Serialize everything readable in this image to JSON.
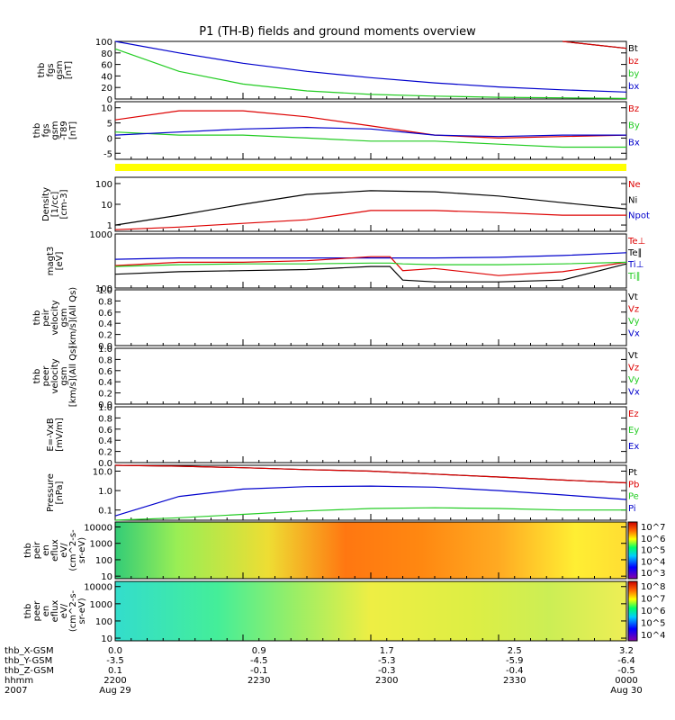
{
  "title": "P1 (TH-B) fields and ground moments overview",
  "colors": {
    "black": "#000000",
    "red": "#dd0000",
    "green": "#22cc22",
    "blue": "#0000cc",
    "yellow": "#ffff00"
  },
  "chart_data": [
    {
      "type": "line",
      "id": "fgs",
      "ylabel": [
        "thb",
        "fgs",
        "gsm",
        "[nT]"
      ],
      "ylim": [
        0,
        100
      ],
      "yticks": [
        "0",
        "20",
        "40",
        "60",
        "80",
        "100"
      ],
      "legend": [
        {
          "name": "Bt",
          "color": "black"
        },
        {
          "name": "bz",
          "color": "red"
        },
        {
          "name": "by",
          "color": "green"
        },
        {
          "name": "bx",
          "color": "blue"
        }
      ],
      "x": [
        0,
        0.4,
        0.8,
        1.2,
        1.6,
        2.0,
        2.4,
        2.8,
        3.2
      ],
      "series": [
        {
          "name": "Bt",
          "values": [
            null,
            null,
            null,
            null,
            null,
            null,
            null,
            100,
            88
          ]
        },
        {
          "name": "bz",
          "values": [
            null,
            null,
            null,
            null,
            null,
            null,
            null,
            100,
            88
          ]
        },
        {
          "name": "by",
          "values": [
            87,
            48,
            26,
            14,
            8,
            5,
            3,
            2,
            1
          ]
        },
        {
          "name": "bx",
          "values": [
            100,
            80,
            62,
            48,
            37,
            28,
            21,
            16,
            12
          ]
        }
      ]
    },
    {
      "type": "line",
      "id": "t89",
      "ylabel": [
        "thb",
        "fgs",
        "gsm",
        "-T89",
        "[nT]"
      ],
      "ylim": [
        -7,
        12
      ],
      "yticks": [
        "-5",
        "0",
        "5",
        "10"
      ],
      "legend": [
        {
          "name": "Bz",
          "color": "red"
        },
        {
          "name": "By",
          "color": "green"
        },
        {
          "name": "Bx",
          "color": "blue"
        }
      ],
      "x": [
        0,
        0.4,
        0.8,
        1.2,
        1.6,
        2.0,
        2.4,
        2.8,
        3.2
      ],
      "series": [
        {
          "name": "Bz",
          "values": [
            6,
            9,
            9,
            7,
            4,
            1,
            0,
            0.5,
            1
          ]
        },
        {
          "name": "By",
          "values": [
            2,
            1,
            1,
            0,
            -1,
            -1,
            -2,
            -3,
            -3
          ]
        },
        {
          "name": "Bx",
          "values": [
            1,
            2,
            3,
            3.5,
            3,
            1,
            0.5,
            1,
            1
          ]
        }
      ]
    },
    {
      "type": "line",
      "id": "density",
      "ylabel": [
        "Density",
        "[1/cc]",
        "[cm-3]"
      ],
      "scale": "log",
      "ylim": [
        0.5,
        200
      ],
      "yticks": [
        "1",
        "10",
        "100"
      ],
      "legend": [
        {
          "name": "Ne",
          "color": "red"
        },
        {
          "name": "Ni",
          "color": "black"
        },
        {
          "name": "Npot",
          "color": "blue"
        }
      ],
      "x": [
        0,
        0.4,
        0.8,
        1.2,
        1.6,
        2.0,
        2.4,
        2.8,
        3.2
      ],
      "series": [
        {
          "name": "Ni",
          "values": [
            1,
            3,
            10,
            30,
            45,
            40,
            25,
            12,
            6
          ]
        },
        {
          "name": "Ne",
          "values": [
            0.6,
            0.8,
            1.2,
            1.8,
            5,
            5,
            4,
            3,
            3
          ]
        }
      ]
    },
    {
      "type": "line",
      "id": "temp",
      "ylabel": [
        "magt3",
        "[eV]"
      ],
      "scale": "log",
      "ylim": [
        100,
        1000
      ],
      "yticks": [
        "100",
        "1000"
      ],
      "legend": [
        {
          "name": "Te⊥",
          "color": "red"
        },
        {
          "name": "Te∥",
          "color": "black"
        },
        {
          "name": "Ti⊥",
          "color": "blue"
        },
        {
          "name": "Ti∥",
          "color": "green"
        }
      ],
      "x": [
        0,
        0.4,
        0.8,
        1.2,
        1.6,
        1.72,
        1.8,
        2.0,
        2.4,
        2.8,
        3.2
      ],
      "series": [
        {
          "name": "Ti⊥",
          "values": [
            340,
            360,
            360,
            360,
            360,
            360,
            360,
            360,
            370,
            400,
            450
          ]
        },
        {
          "name": "Te⊥",
          "values": [
            260,
            300,
            300,
            320,
            380,
            380,
            210,
            230,
            170,
            200,
            300
          ]
        },
        {
          "name": "Ti∥",
          "values": [
            250,
            270,
            280,
            280,
            290,
            290,
            280,
            270,
            270,
            280,
            300
          ]
        },
        {
          "name": "Te∥",
          "values": [
            180,
            200,
            210,
            220,
            250,
            250,
            140,
            130,
            130,
            140,
            280
          ]
        }
      ]
    },
    {
      "type": "line",
      "id": "peir_vel",
      "ylabel": [
        "thb",
        "peir",
        "velocity",
        "gsm",
        "[km/s](All Qs)"
      ],
      "ylim": [
        0,
        1
      ],
      "yticks": [
        "0.0",
        "0.2",
        "0.4",
        "0.6",
        "0.8",
        "1.0"
      ],
      "legend": [
        {
          "name": "Vt",
          "color": "black"
        },
        {
          "name": "Vz",
          "color": "red"
        },
        {
          "name": "Vy",
          "color": "green"
        },
        {
          "name": "Vx",
          "color": "blue"
        }
      ],
      "series": []
    },
    {
      "type": "line",
      "id": "peer_vel",
      "ylabel": [
        "thb",
        "peer",
        "velocity",
        "gsm",
        "[km/s](All Qs)"
      ],
      "ylim": [
        0,
        1
      ],
      "yticks": [
        "0.0",
        "0.2",
        "0.4",
        "0.6",
        "0.8",
        "1.0"
      ],
      "legend": [
        {
          "name": "Vt",
          "color": "black"
        },
        {
          "name": "Vz",
          "color": "red"
        },
        {
          "name": "Vy",
          "color": "green"
        },
        {
          "name": "Vx",
          "color": "blue"
        }
      ],
      "series": []
    },
    {
      "type": "line",
      "id": "efield",
      "ylabel": [
        "E=-VxB",
        "[mV/m]"
      ],
      "ylim": [
        0,
        1
      ],
      "yticks": [
        "0.0",
        "0.2",
        "0.4",
        "0.6",
        "0.8",
        "1.0"
      ],
      "legend": [
        {
          "name": "Ez",
          "color": "red"
        },
        {
          "name": "Ey",
          "color": "green"
        },
        {
          "name": "Ex",
          "color": "blue"
        }
      ],
      "series": []
    },
    {
      "type": "line",
      "id": "pressure",
      "ylabel": [
        "Pressure",
        "[nPa]"
      ],
      "scale": "log",
      "ylim": [
        0.03,
        20
      ],
      "yticks": [
        "0.1",
        "1.0",
        "10.0"
      ],
      "legend": [
        {
          "name": "Pt",
          "color": "black"
        },
        {
          "name": "Pb",
          "color": "red"
        },
        {
          "name": "Pe",
          "color": "green"
        },
        {
          "name": "Pi",
          "color": "blue"
        }
      ],
      "x": [
        0,
        0.4,
        0.8,
        1.2,
        1.6,
        2.0,
        2.4,
        2.8,
        3.2
      ],
      "series": [
        {
          "name": "Pt",
          "values": [
            20,
            18,
            15,
            12,
            10,
            7,
            5,
            3.5,
            2.5
          ]
        },
        {
          "name": "Pb",
          "values": [
            20,
            18,
            15,
            12,
            10,
            7,
            5,
            3.5,
            2.5
          ]
        },
        {
          "name": "Pi",
          "values": [
            0.05,
            0.5,
            1.2,
            1.6,
            1.7,
            1.5,
            1.0,
            0.6,
            0.35
          ]
        },
        {
          "name": "Pe",
          "values": [
            0.03,
            0.04,
            0.06,
            0.09,
            0.12,
            0.13,
            0.12,
            0.1,
            0.1
          ]
        }
      ]
    },
    {
      "type": "heatmap",
      "id": "peir_spec",
      "ylabel": [
        "thb",
        "peir",
        "en",
        "eflux",
        "eV/",
        "(cm^2-s-",
        "sr-eV)"
      ],
      "scale": "log",
      "ylim": [
        7,
        20000
      ],
      "yticks": [
        "10",
        "100",
        "1000",
        "10000"
      ],
      "colorbar": {
        "ticks": [
          "10^3",
          "10^4",
          "10^5",
          "10^6",
          "10^7"
        ]
      }
    },
    {
      "type": "heatmap",
      "id": "peer_spec",
      "ylabel": [
        "thb",
        "peer",
        "en",
        "eflux",
        "eV/",
        "(cm^2-s-",
        "sr-eV)"
      ],
      "scale": "log",
      "ylim": [
        7,
        20000
      ],
      "yticks": [
        "10",
        "100",
        "1000",
        "10000"
      ],
      "colorbar": {
        "ticks": [
          "10^4",
          "10^5",
          "10^6",
          "10^7",
          "10^8"
        ]
      }
    }
  ],
  "xaxis": {
    "rows": [
      {
        "label": "thb_X-GSM",
        "values": [
          "0.0",
          "0.9",
          "1.7",
          "2.5",
          "3.2"
        ]
      },
      {
        "label": "thb_Y-GSM",
        "values": [
          "-3.5",
          "-4.5",
          "-5.3",
          "-5.9",
          "-6.4"
        ]
      },
      {
        "label": "thb_Z-GSM",
        "values": [
          "0.1",
          "-0.1",
          "-0.3",
          "-0.4",
          "-0.5"
        ]
      },
      {
        "label": "hhmm",
        "values": [
          "2200",
          "2230",
          "2300",
          "2330",
          "0000"
        ]
      },
      {
        "label": "2007",
        "values": [
          "Aug 29",
          "",
          "",
          "",
          "Aug 30"
        ]
      }
    ]
  }
}
